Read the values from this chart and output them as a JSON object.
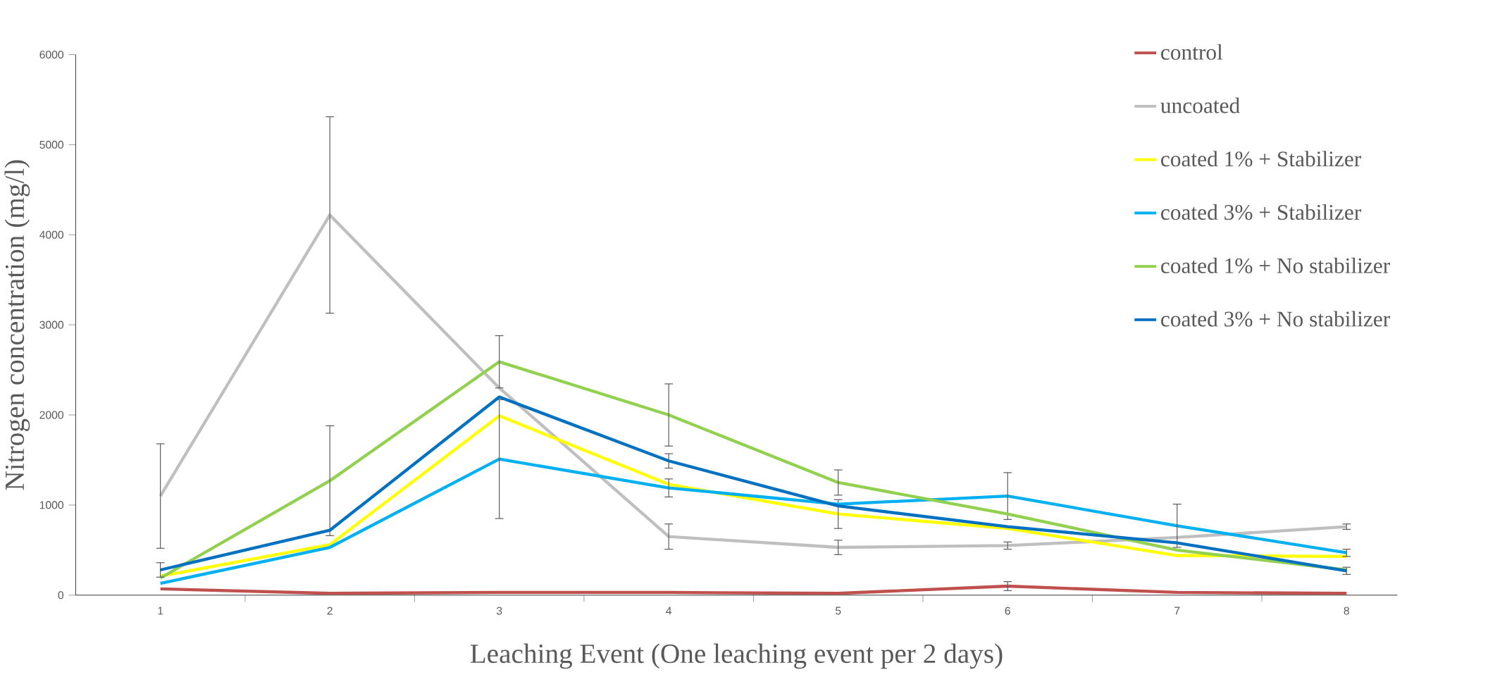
{
  "chart_data": {
    "type": "line",
    "xlabel": "Leaching Event (One leaching event per 2 days)",
    "ylabel": "Nitrogen concentration (mg/l)",
    "categories": [
      "1",
      "2",
      "3",
      "4",
      "5",
      "6",
      "7",
      "8"
    ],
    "ylim": [
      0,
      6000
    ],
    "yticks": [
      0,
      1000,
      2000,
      3000,
      4000,
      5000,
      6000
    ],
    "grid": false,
    "legend": "top right",
    "marker": "none",
    "line_style": "solid",
    "series": [
      {
        "name": "control",
        "color": "#c0504d",
        "values": [
          70,
          20,
          30,
          30,
          20,
          100,
          30,
          20
        ],
        "errors": [
          null,
          null,
          null,
          null,
          null,
          50,
          null,
          null
        ]
      },
      {
        "name": "uncoated",
        "color": "#bfbfbf",
        "values": [
          1100,
          4220,
          2300,
          650,
          530,
          550,
          640,
          760
        ],
        "errors": [
          580,
          1090,
          null,
          140,
          80,
          40,
          null,
          30
        ]
      },
      {
        "name": "coated 1% + Stabilizer",
        "color": "#ffff00",
        "values": [
          210,
          560,
          1990,
          1230,
          900,
          740,
          440,
          430
        ],
        "errors": [
          null,
          null,
          null,
          null,
          160,
          null,
          null,
          null
        ]
      },
      {
        "name": "coated 3% + Stabilizer",
        "color": "#00b0f0",
        "values": [
          130,
          530,
          1510,
          1190,
          1010,
          1100,
          770,
          470
        ],
        "errors": [
          null,
          null,
          660,
          100,
          null,
          260,
          240,
          40
        ]
      },
      {
        "name": "coated 1% + No stabilizer",
        "color": "#92d050",
        "values": [
          190,
          1270,
          2590,
          2000,
          1250,
          900,
          500,
          280
        ],
        "errors": [
          null,
          610,
          290,
          345,
          140,
          null,
          null,
          null
        ]
      },
      {
        "name": "coated 3% + No stabilizer",
        "color": "#0070c0",
        "values": [
          280,
          720,
          2200,
          1490,
          990,
          760,
          580,
          270
        ],
        "errors": [
          80,
          null,
          null,
          80,
          null,
          null,
          null,
          40
        ]
      }
    ]
  }
}
